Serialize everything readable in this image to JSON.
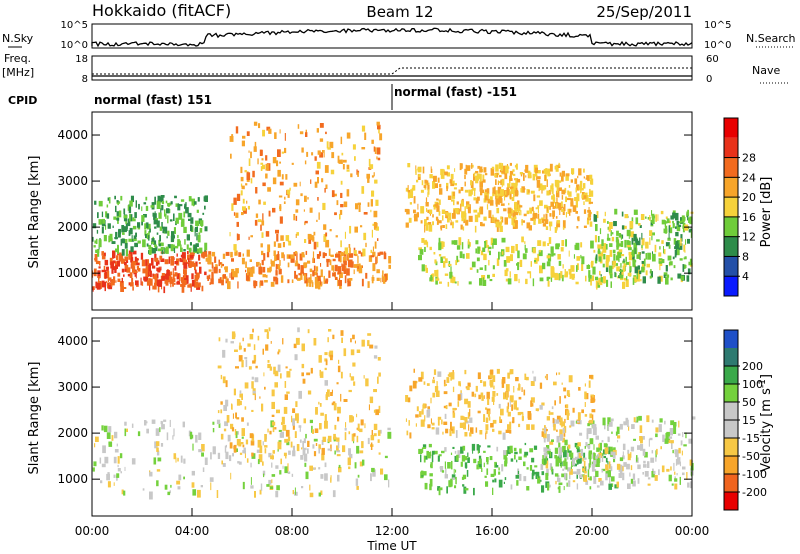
{
  "header": {
    "title": "Hokkaido (fitACF)",
    "beam": "Beam 12",
    "date": "25/Sep/2011"
  },
  "params_panel": {
    "nsky_label": "N.Sky",
    "nsky_ticks": [
      "10^5",
      "10^0"
    ],
    "nsearch_label": "N.Search",
    "freq_label": "Freq.",
    "freq_unit": "[MHz]",
    "freq_ticks": [
      "18",
      "8"
    ],
    "nave_label": "Nave",
    "nave_ticks": [
      "60",
      "0"
    ],
    "cpid_label": "CPID",
    "cpid_segments": [
      {
        "label": "normal (fast) 151",
        "start_hour": 0,
        "end_hour": 12
      },
      {
        "label": "normal (fast) -151",
        "start_hour": 12,
        "end_hour": 24
      }
    ]
  },
  "colorbars": {
    "power": {
      "label": "Power [dB]",
      "ticks": [
        "4",
        "8",
        "12",
        "16",
        "20",
        "24",
        "28"
      ],
      "colors": [
        "#0a1bff",
        "#2450a8",
        "#2e8c4a",
        "#6fcc3a",
        "#f6d23b",
        "#f7a52a",
        "#f26b1f",
        "#e8321a",
        "#e80000"
      ]
    },
    "velocity": {
      "label": "Velocity [m s",
      "label_sup": "-1",
      "label_end": "]",
      "ticks": [
        "-200",
        "-100",
        "-50",
        "-15",
        "15",
        "50",
        "100",
        "200"
      ],
      "colors": [
        "#e80000",
        "#f0641e",
        "#f7a52a",
        "#f7c845",
        "#c8c8c8",
        "#c8c8c8",
        "#74d13d",
        "#3aa94a",
        "#2e7a70",
        "#1f50c8"
      ]
    }
  },
  "chart_data": [
    {
      "type": "heatmap",
      "panel": "power",
      "ylabel": "Slant Range [km]",
      "y_ticks": [
        "1000",
        "2000",
        "3000",
        "4000"
      ],
      "ylim": [
        200,
        4500
      ],
      "xlim": [
        0,
        24
      ],
      "colorbar": "Power [dB]",
      "echo_regions": [
        {
          "hours": [
            0,
            4.5
          ],
          "range_km": [
            700,
            1500
          ],
          "power_db": 26
        },
        {
          "hours": [
            0,
            4.5
          ],
          "range_km": [
            1500,
            2700
          ],
          "power_db": 10
        },
        {
          "hours": [
            4.5,
            12
          ],
          "range_km": [
            800,
            1500
          ],
          "power_db": 22
        },
        {
          "hours": [
            5.5,
            11.5
          ],
          "range_km": [
            1500,
            4300
          ],
          "power_db": 20
        },
        {
          "hours": [
            12.5,
            17
          ],
          "range_km": [
            2000,
            3400
          ],
          "power_db": 18
        },
        {
          "hours": [
            16,
            20
          ],
          "range_km": [
            2000,
            3400
          ],
          "power_db": 18
        },
        {
          "hours": [
            13,
            22
          ],
          "range_km": [
            800,
            1800
          ],
          "power_db": 14
        },
        {
          "hours": [
            20,
            24
          ],
          "range_km": [
            900,
            2400
          ],
          "power_db": 12
        }
      ]
    },
    {
      "type": "heatmap",
      "panel": "velocity",
      "ylabel": "Slant Range [km]",
      "y_ticks": [
        "1000",
        "2000",
        "3000",
        "4000"
      ],
      "ylim": [
        200,
        4500
      ],
      "xlim": [
        0,
        24
      ],
      "xlabel": "Time UT",
      "x_ticks": [
        "00:00",
        "04:00",
        "08:00",
        "12:00",
        "16:00",
        "20:00",
        "00:00"
      ],
      "colorbar": "Velocity [m s-1]",
      "echo_regions": [
        {
          "hours": [
            0,
            12
          ],
          "range_km": [
            700,
            2300
          ],
          "velocity": 0
        },
        {
          "hours": [
            5,
            11.5
          ],
          "range_km": [
            1500,
            4300
          ],
          "velocity": -40
        },
        {
          "hours": [
            12.5,
            20
          ],
          "range_km": [
            2000,
            3400
          ],
          "velocity": -40
        },
        {
          "hours": [
            13,
            21
          ],
          "range_km": [
            800,
            1800
          ],
          "velocity": 40
        },
        {
          "hours": [
            18,
            24
          ],
          "range_km": [
            900,
            2400
          ],
          "velocity": 0
        }
      ]
    }
  ]
}
